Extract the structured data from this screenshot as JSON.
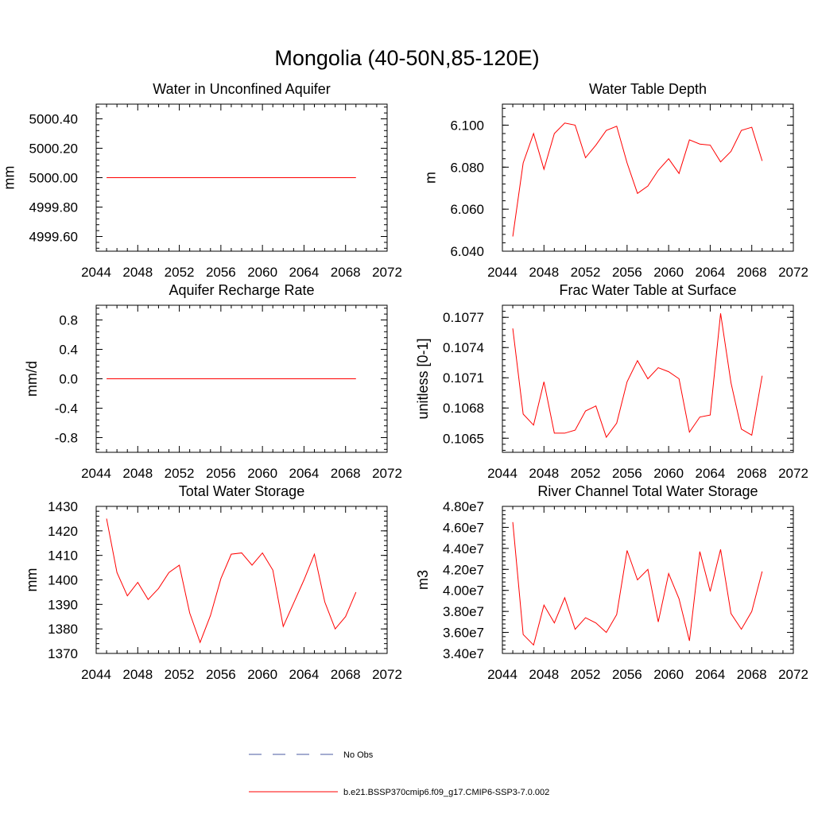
{
  "title": "Mongolia (40-50N,85-120E)",
  "colors": {
    "series": "#ff0000",
    "obs": "#4a5aa0",
    "axis": "#000000"
  },
  "legend": {
    "items": [
      {
        "label": "No Obs",
        "color": "#4a5aa0",
        "dash": true
      },
      {
        "label": "b.e21.BSSP370cmip6.f09_g17.CMIP6-SSP3-7.0.002",
        "color": "#ff0000",
        "dash": false
      }
    ]
  },
  "chart_data": [
    {
      "type": "line",
      "title": "Water in Unconfined Aquifer",
      "ylabel": "mm",
      "xlim": [
        2044,
        2072
      ],
      "ylim": [
        4999.5,
        5000.5
      ],
      "xticks": [
        "2044",
        "2048",
        "2052",
        "2056",
        "2060",
        "2064",
        "2068",
        "2072"
      ],
      "yticks": [
        {
          "v": 4999.6,
          "label": "4999.60"
        },
        {
          "v": 4999.8,
          "label": "4999.80"
        },
        {
          "v": 5000.0,
          "label": "5000.00"
        },
        {
          "v": 5000.2,
          "label": "5000.20"
        },
        {
          "v": 5000.4,
          "label": "5000.40"
        }
      ],
      "x": [
        2045,
        2046,
        2047,
        2048,
        2049,
        2050,
        2051,
        2052,
        2053,
        2054,
        2055,
        2056,
        2057,
        2058,
        2059,
        2060,
        2061,
        2062,
        2063,
        2064,
        2065,
        2066,
        2067,
        2068,
        2069
      ],
      "series": [
        {
          "values": [
            5000,
            5000,
            5000,
            5000,
            5000,
            5000,
            5000,
            5000,
            5000,
            5000,
            5000,
            5000,
            5000,
            5000,
            5000,
            5000,
            5000,
            5000,
            5000,
            5000,
            5000,
            5000,
            5000,
            5000,
            5000
          ]
        }
      ]
    },
    {
      "type": "line",
      "title": "Water Table Depth",
      "ylabel": "m",
      "xlim": [
        2044,
        2072
      ],
      "ylim": [
        6.04,
        6.11
      ],
      "xticks": [
        "2044",
        "2048",
        "2052",
        "2056",
        "2060",
        "2064",
        "2068",
        "2072"
      ],
      "yticks": [
        {
          "v": 6.04,
          "label": "6.040"
        },
        {
          "v": 6.06,
          "label": "6.060"
        },
        {
          "v": 6.08,
          "label": "6.080"
        },
        {
          "v": 6.1,
          "label": "6.100"
        }
      ],
      "x": [
        2045,
        2046,
        2047,
        2048,
        2049,
        2050,
        2051,
        2052,
        2053,
        2054,
        2055,
        2056,
        2057,
        2058,
        2059,
        2060,
        2061,
        2062,
        2063,
        2064,
        2065,
        2066,
        2067,
        2068,
        2069
      ],
      "series": [
        {
          "values": [
            6.047,
            6.082,
            6.096,
            6.079,
            6.096,
            6.101,
            6.1,
            6.0845,
            6.0905,
            6.0975,
            6.0995,
            6.082,
            6.0675,
            6.071,
            6.0785,
            6.084,
            6.077,
            6.093,
            6.091,
            6.0905,
            6.0825,
            6.0875,
            6.0975,
            6.099,
            6.083
          ]
        }
      ]
    },
    {
      "type": "line",
      "title": "Aquifer Recharge Rate",
      "ylabel": "mm/d",
      "xlim": [
        2044,
        2072
      ],
      "ylim": [
        -1.0,
        1.0
      ],
      "xticks": [
        "2044",
        "2048",
        "2052",
        "2056",
        "2060",
        "2064",
        "2068",
        "2072"
      ],
      "yticks": [
        {
          "v": -0.8,
          "label": "-0.8"
        },
        {
          "v": -0.4,
          "label": "-0.4"
        },
        {
          "v": 0.0,
          "label": "0.0"
        },
        {
          "v": 0.4,
          "label": "0.4"
        },
        {
          "v": 0.8,
          "label": "0.8"
        }
      ],
      "x": [
        2045,
        2046,
        2047,
        2048,
        2049,
        2050,
        2051,
        2052,
        2053,
        2054,
        2055,
        2056,
        2057,
        2058,
        2059,
        2060,
        2061,
        2062,
        2063,
        2064,
        2065,
        2066,
        2067,
        2068,
        2069
      ],
      "series": [
        {
          "values": [
            0,
            0,
            0,
            0,
            0,
            0,
            0,
            0,
            0,
            0,
            0,
            0,
            0,
            0,
            0,
            0,
            0,
            0,
            0,
            0,
            0,
            0,
            0,
            0,
            0
          ]
        }
      ]
    },
    {
      "type": "line",
      "title": "Frac Water Table at Surface",
      "ylabel": "unitless [0-1]",
      "xlim": [
        2044,
        2072
      ],
      "ylim": [
        0.10636,
        0.10782
      ],
      "xticks": [
        "2044",
        "2048",
        "2052",
        "2056",
        "2060",
        "2064",
        "2068",
        "2072"
      ],
      "yticks": [
        {
          "v": 0.1065,
          "label": "0.1065"
        },
        {
          "v": 0.1068,
          "label": "0.1068"
        },
        {
          "v": 0.1071,
          "label": "0.1071"
        },
        {
          "v": 0.1074,
          "label": "0.1074"
        },
        {
          "v": 0.1077,
          "label": "0.1077"
        }
      ],
      "x": [
        2045,
        2046,
        2047,
        2048,
        2049,
        2050,
        2051,
        2052,
        2053,
        2054,
        2055,
        2056,
        2057,
        2058,
        2059,
        2060,
        2061,
        2062,
        2063,
        2064,
        2065,
        2066,
        2067,
        2068,
        2069
      ],
      "series": [
        {
          "values": [
            0.10759,
            0.10674,
            0.10663,
            0.10706,
            0.10655,
            0.10655,
            0.10658,
            0.10677,
            0.10682,
            0.10651,
            0.10665,
            0.10706,
            0.10727,
            0.10709,
            0.1072,
            0.10716,
            0.10709,
            0.10656,
            0.10671,
            0.10673,
            0.10774,
            0.10705,
            0.10659,
            0.10653,
            0.10712
          ]
        }
      ]
    },
    {
      "type": "line",
      "title": "Total Water Storage",
      "ylabel": "mm",
      "xlim": [
        2044,
        2072
      ],
      "ylim": [
        1370,
        1430
      ],
      "xticks": [
        "2044",
        "2048",
        "2052",
        "2056",
        "2060",
        "2064",
        "2068",
        "2072"
      ],
      "yticks": [
        {
          "v": 1370,
          "label": "1370"
        },
        {
          "v": 1380,
          "label": "1380"
        },
        {
          "v": 1390,
          "label": "1390"
        },
        {
          "v": 1400,
          "label": "1400"
        },
        {
          "v": 1410,
          "label": "1410"
        },
        {
          "v": 1420,
          "label": "1420"
        },
        {
          "v": 1430,
          "label": "1430"
        }
      ],
      "x": [
        2045,
        2046,
        2047,
        2048,
        2049,
        2050,
        2051,
        2052,
        2053,
        2054,
        2055,
        2056,
        2057,
        2058,
        2059,
        2060,
        2061,
        2062,
        2063,
        2064,
        2065,
        2066,
        2067,
        2068,
        2069
      ],
      "series": [
        {
          "values": [
            1425,
            1403,
            1393.5,
            1399,
            1392,
            1396.5,
            1403,
            1406,
            1386.5,
            1374.5,
            1385.5,
            1400.5,
            1410.5,
            1411,
            1406,
            1411,
            1404,
            1381,
            1390.5,
            1400,
            1410.5,
            1391,
            1380,
            1385,
            1395
          ]
        }
      ]
    },
    {
      "type": "line",
      "title": "River Channel Total Water Storage",
      "ylabel": "m3",
      "xlim": [
        2044,
        2072
      ],
      "ylim": [
        34000000,
        48000000
      ],
      "xticks": [
        "2044",
        "2048",
        "2052",
        "2056",
        "2060",
        "2064",
        "2068",
        "2072"
      ],
      "yticks": [
        {
          "v": 34000000,
          "label": "3.40e7"
        },
        {
          "v": 36000000,
          "label": "3.60e7"
        },
        {
          "v": 38000000,
          "label": "3.80e7"
        },
        {
          "v": 40000000,
          "label": "4.00e7"
        },
        {
          "v": 42000000,
          "label": "4.20e7"
        },
        {
          "v": 44000000,
          "label": "4.40e7"
        },
        {
          "v": 46000000,
          "label": "4.60e7"
        },
        {
          "v": 48000000,
          "label": "4.80e7"
        }
      ],
      "x": [
        2045,
        2046,
        2047,
        2048,
        2049,
        2050,
        2051,
        2052,
        2053,
        2054,
        2055,
        2056,
        2057,
        2058,
        2059,
        2060,
        2061,
        2062,
        2063,
        2064,
        2065,
        2066,
        2067,
        2068,
        2069
      ],
      "series": [
        {
          "values": [
            46500000,
            35800000,
            34800000,
            38600000,
            36900000,
            39300000,
            36300000,
            37400000,
            36900000,
            36000000,
            37700000,
            43800000,
            41000000,
            42000000,
            37000000,
            41600000,
            39200000,
            35200000,
            43700000,
            39900000,
            43900000,
            37800000,
            36300000,
            38000000,
            41800000
          ]
        }
      ]
    }
  ]
}
